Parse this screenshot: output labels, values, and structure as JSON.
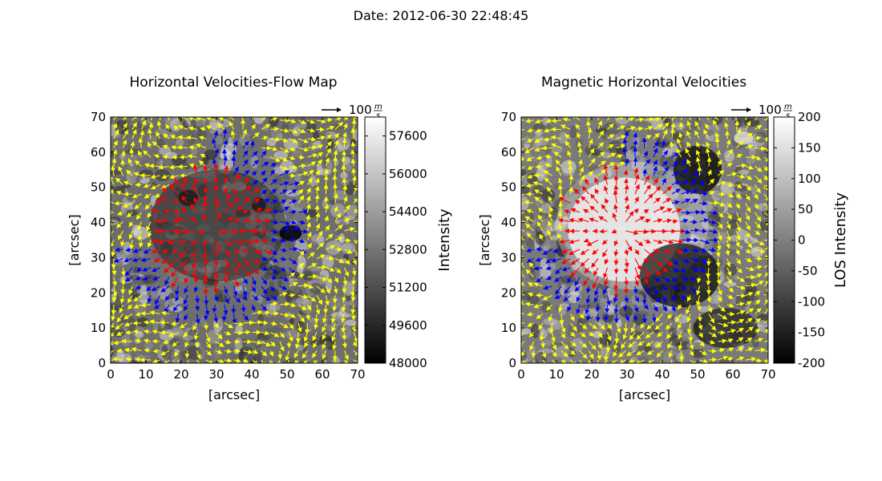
{
  "figure": {
    "suptitle": "Date: 2012-06-30 22:48:45"
  },
  "colors": {
    "flow_arrow": "#ffff00",
    "umbra_arrow": "#ff0000",
    "penumbra_arrow": "#0000ff",
    "axes": "#000000",
    "background": "#ffffff"
  },
  "chart_data": [
    {
      "type": "heatmap",
      "title": "Horizontal Velocities-Flow Map",
      "xlabel": "[arcsec]",
      "ylabel": "[arcsec]",
      "xlim": [
        0,
        70
      ],
      "ylim": [
        0,
        70
      ],
      "xticks": [
        "0",
        "10",
        "20",
        "30",
        "40",
        "50",
        "60",
        "70"
      ],
      "yticks": [
        "0",
        "10",
        "20",
        "30",
        "40",
        "50",
        "60",
        "70"
      ],
      "grid": false,
      "overlay": "quiver",
      "quiver_key": {
        "label": "100",
        "unit_num": "m",
        "unit_den": "s",
        "magnitude": 100
      },
      "colorbar": {
        "label": "Intensity",
        "min": 48000,
        "max": 58400,
        "colormap": "gray",
        "ticks": [
          "48000",
          "49600",
          "51200",
          "52800",
          "54400",
          "56000",
          "57600"
        ]
      }
    },
    {
      "type": "heatmap",
      "title": "Magnetic Horizontal Velocities",
      "xlabel": "[arcsec]",
      "ylabel": "[arcsec]",
      "xlim": [
        0,
        70
      ],
      "ylim": [
        0,
        70
      ],
      "xticks": [
        "0",
        "10",
        "20",
        "30",
        "40",
        "50",
        "60",
        "70"
      ],
      "yticks": [
        "0",
        "10",
        "20",
        "30",
        "40",
        "50",
        "60",
        "70"
      ],
      "grid": false,
      "overlay": "quiver",
      "quiver_key": {
        "label": "100",
        "unit_num": "m",
        "unit_den": "s",
        "magnitude": 100
      },
      "colorbar": {
        "label": "LOS Intensity",
        "min": -200,
        "max": 200,
        "colormap": "gray",
        "ticks": [
          "-200",
          "-150",
          "-100",
          "-50",
          "0",
          "50",
          "100",
          "150",
          "200"
        ]
      }
    }
  ]
}
